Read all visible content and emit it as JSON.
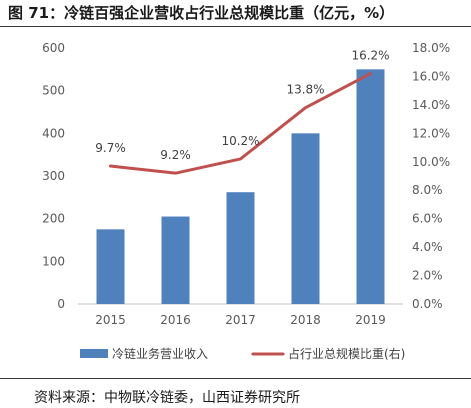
{
  "header": {
    "title": "图 71：冷链百强企业营收占行业总规模比重（亿元，%）"
  },
  "footer": {
    "source": "资料来源：中物联冷链委，山西证券研究所"
  },
  "chart_data": {
    "type": "bar",
    "categories": [
      "2015",
      "2016",
      "2017",
      "2018",
      "2019"
    ],
    "series": [
      {
        "name": "冷链业务营业收入",
        "type": "bar",
        "axis": "left",
        "values": [
          175,
          205,
          262,
          400,
          550
        ],
        "color": "#4f81bd"
      },
      {
        "name": "占行业总规模比重(右)",
        "type": "line",
        "axis": "right",
        "values": [
          9.7,
          9.2,
          10.2,
          13.8,
          16.2
        ],
        "labels": [
          "9.7%",
          "9.2%",
          "10.2%",
          "13.8%",
          "16.2%"
        ],
        "color": "#c0504d"
      }
    ],
    "y_left": {
      "ylim": [
        0,
        600
      ],
      "ticks": [
        0,
        100,
        200,
        300,
        400,
        500,
        600
      ],
      "tick_labels": [
        "0",
        "100",
        "200",
        "300",
        "400",
        "500",
        "600"
      ]
    },
    "y_right": {
      "ylim": [
        0,
        18
      ],
      "ticks": [
        0,
        2,
        4,
        6,
        8,
        10,
        12,
        14,
        16,
        18
      ],
      "tick_labels": [
        "0.0%",
        "2.0%",
        "4.0%",
        "6.0%",
        "8.0%",
        "10.0%",
        "12.0%",
        "14.0%",
        "16.0%",
        "18.0%"
      ]
    },
    "grid": false,
    "legend": "bottom"
  }
}
